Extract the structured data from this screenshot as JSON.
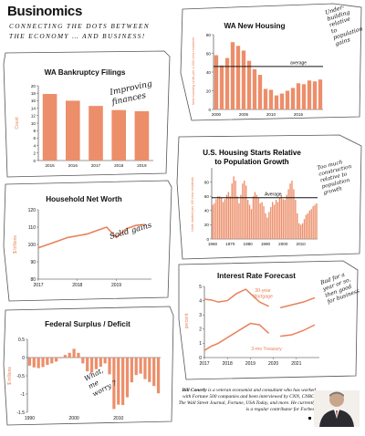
{
  "brand": {
    "title": "Businomics",
    "tagline": "CONNECTING THE DOTS BETWEEN THE ECONOMY … AND BUSINESS!"
  },
  "bio": {
    "author_name": "Bill Conerly",
    "text": "is a veteran economist and consultant who has worked with Fortune 500 companies and been interviewed by CNN, CNBC, The Wall Street Journal, Fortune, USA Today, and more. He currently is a regular contributor for Forbes."
  },
  "colors": {
    "bar": "#ec8e6a",
    "line": "#e9805a",
    "ink": "#111111",
    "panel_border": "#555555"
  },
  "notes": {
    "housing_note": "Under-building relative to population gains",
    "starts_note": "Too much construction relative to population growth",
    "bankruptcy_note": "Improving finances",
    "networth_note": "Solid gains",
    "deficit_note": "What, me worry?",
    "interest_note": "Bad for a year or so, then good for business"
  },
  "chart_data": [
    {
      "id": "bankruptcy",
      "type": "bar",
      "title": "WA Bankruptcy Filings",
      "ylabel": "Count",
      "ylim": [
        0,
        20
      ],
      "yticks": [
        0,
        2,
        4,
        6,
        8,
        10,
        12,
        14,
        16,
        18,
        20
      ],
      "categories": [
        "2015",
        "2016",
        "2017",
        "2018",
        "2019"
      ],
      "values": [
        17.8,
        16.0,
        14.6,
        13.5,
        13.2
      ]
    },
    {
      "id": "new_housing",
      "type": "bar",
      "title": "WA New Housing",
      "ylabel": "New housing units per 1,000 new residents",
      "ylim": [
        0,
        80
      ],
      "yticks": [
        0,
        20,
        40,
        60,
        80
      ],
      "xticks": [
        "2000",
        "2005",
        "2010",
        "2015"
      ],
      "categories": [
        "2000",
        "2001",
        "2002",
        "2003",
        "2004",
        "2005",
        "2006",
        "2007",
        "2008",
        "2009",
        "2010",
        "2011",
        "2012",
        "2013",
        "2014",
        "2015",
        "2016",
        "2017",
        "2018",
        "2019"
      ],
      "values": [
        58,
        47,
        55,
        72,
        68,
        63,
        52,
        43,
        37,
        22,
        21,
        15,
        17,
        20,
        23,
        28,
        27,
        31,
        30,
        32
      ],
      "average_value": 46,
      "average_label": "average"
    },
    {
      "id": "starts_population",
      "type": "bar",
      "title": "U.S. Housing Starts Relative to Population Growth",
      "ylabel": "Units started per 100 new residents",
      "ylim": [
        0,
        100
      ],
      "yticks": [
        0,
        20,
        40,
        60,
        80
      ],
      "xticks": [
        "1960",
        "1970",
        "1980",
        "1990",
        "2000",
        "2010"
      ],
      "categories": [
        "1960",
        "1961",
        "1962",
        "1963",
        "1964",
        "1965",
        "1966",
        "1967",
        "1968",
        "1969",
        "1970",
        "1971",
        "1972",
        "1973",
        "1974",
        "1975",
        "1976",
        "1977",
        "1978",
        "1979",
        "1980",
        "1981",
        "1982",
        "1983",
        "1984",
        "1985",
        "1986",
        "1987",
        "1988",
        "1989",
        "1990",
        "1991",
        "1992",
        "1993",
        "1994",
        "1995",
        "1996",
        "1997",
        "1998",
        "1999",
        "2000",
        "2001",
        "2002",
        "2003",
        "2004",
        "2005",
        "2006",
        "2007",
        "2008",
        "2009",
        "2010",
        "2011",
        "2012",
        "2013",
        "2014",
        "2015",
        "2016",
        "2017",
        "2018",
        "2019"
      ],
      "values": [
        48,
        50,
        56,
        60,
        60,
        58,
        52,
        56,
        62,
        66,
        60,
        78,
        88,
        82,
        60,
        50,
        62,
        78,
        82,
        75,
        55,
        48,
        42,
        60,
        66,
        62,
        58,
        50,
        52,
        46,
        36,
        30,
        38,
        45,
        52,
        48,
        55,
        52,
        58,
        62,
        56,
        55,
        62,
        70,
        78,
        82,
        70,
        55,
        36,
        22,
        20,
        22,
        28,
        34,
        36,
        40,
        42,
        46,
        48,
        50
      ],
      "average_value": 58,
      "average_label": "Average"
    },
    {
      "id": "net_worth",
      "type": "line",
      "title": "Household Net Worth",
      "ylabel": "$ trillions",
      "ylim": [
        80,
        120
      ],
      "yticks": [
        80,
        90,
        100,
        110,
        120
      ],
      "xticks": [
        "2017",
        "2018",
        "2019"
      ],
      "x": [
        2017.0,
        2017.25,
        2017.5,
        2017.75,
        2018.0,
        2018.25,
        2018.5,
        2018.75,
        2019.0,
        2019.25,
        2019.5,
        2019.75
      ],
      "values": [
        98,
        100,
        102,
        104,
        105,
        106,
        108,
        110,
        104,
        109,
        111,
        111.5
      ]
    },
    {
      "id": "federal_surplus",
      "type": "bar",
      "title": "Federal Surplus / Deficit",
      "ylabel": "$ trillions",
      "ylim": [
        -1.5,
        0.5
      ],
      "yticks": [
        0.5,
        0.0,
        -0.5,
        -1.0,
        -1.5
      ],
      "xticks": [
        "1990",
        "2000",
        "2010"
      ],
      "categories": [
        "1990",
        "1991",
        "1992",
        "1993",
        "1994",
        "1995",
        "1996",
        "1997",
        "1998",
        "1999",
        "2000",
        "2001",
        "2002",
        "2003",
        "2004",
        "2005",
        "2006",
        "2007",
        "2008",
        "2009",
        "2010",
        "2011",
        "2012",
        "2013",
        "2014",
        "2015",
        "2016",
        "2017",
        "2018",
        "2019"
      ],
      "values": [
        -0.22,
        -0.27,
        -0.29,
        -0.26,
        -0.2,
        -0.16,
        -0.11,
        -0.02,
        0.07,
        0.13,
        0.24,
        0.13,
        -0.16,
        -0.38,
        -0.41,
        -0.32,
        -0.25,
        -0.16,
        -0.46,
        -1.41,
        -1.29,
        -1.3,
        -1.09,
        -0.68,
        -0.48,
        -0.44,
        -0.59,
        -0.67,
        -0.78,
        -0.98
      ]
    },
    {
      "id": "interest_rates",
      "type": "line",
      "title": "Interest Rate Forecast",
      "ylabel": "percent",
      "ylim": [
        0,
        5
      ],
      "yticks": [
        0,
        1,
        2,
        3,
        4,
        5
      ],
      "xticks": [
        "2017",
        "2018",
        "2019",
        "2020",
        "2021"
      ],
      "series": [
        {
          "name": "30-year Mortgage",
          "x": [
            2017.0,
            2017.3,
            2017.6,
            2018.0,
            2018.4,
            2018.8,
            2019.0,
            2019.4,
            2019.8
          ],
          "values": [
            4.1,
            4.05,
            3.9,
            4.0,
            4.5,
            4.8,
            4.5,
            3.9,
            3.6
          ],
          "forecast_x": [
            2020.3,
            2020.8,
            2021.3,
            2021.8
          ],
          "forecast_values": [
            3.5,
            3.7,
            3.9,
            4.2
          ]
        },
        {
          "name": "3-mo Treasury",
          "x": [
            2017.0,
            2017.3,
            2017.6,
            2018.0,
            2018.4,
            2018.8,
            2019.0,
            2019.4,
            2019.8
          ],
          "values": [
            0.5,
            0.8,
            1.0,
            1.4,
            1.8,
            2.2,
            2.4,
            2.3,
            1.7
          ],
          "forecast_x": [
            2020.3,
            2020.8,
            2021.3,
            2021.8
          ],
          "forecast_values": [
            1.5,
            1.6,
            1.9,
            2.3
          ]
        }
      ]
    }
  ]
}
